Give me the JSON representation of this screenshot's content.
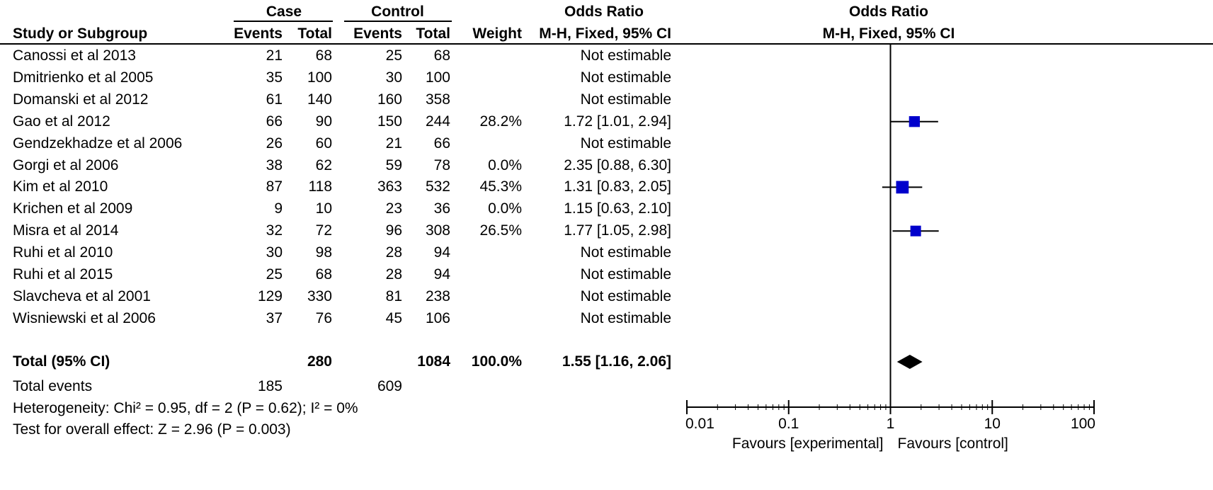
{
  "chart_data": {
    "type": "forest",
    "headers": {
      "case": "Case",
      "control": "Control",
      "or_group": "Odds Ratio",
      "plot_group": "Odds Ratio",
      "study": "Study or Subgroup",
      "case_events": "Events",
      "case_total": "Total",
      "control_events": "Events",
      "control_total": "Total",
      "weight": "Weight",
      "method": "M-H, Fixed, 95% CI",
      "plot_method": "M-H, Fixed, 95% CI"
    },
    "studies": [
      {
        "name": "Canossi et al 2013",
        "case_events": "21",
        "case_total": "68",
        "control_events": "25",
        "control_total": "68",
        "weight": "",
        "or_text": "Not estimable",
        "or": null,
        "lo": null,
        "hi": null,
        "w": 0
      },
      {
        "name": "Dmitrienko et al 2005",
        "case_events": "35",
        "case_total": "100",
        "control_events": "30",
        "control_total": "100",
        "weight": "",
        "or_text": "Not estimable",
        "or": null,
        "lo": null,
        "hi": null,
        "w": 0
      },
      {
        "name": "Domanski et al 2012",
        "case_events": "61",
        "case_total": "140",
        "control_events": "160",
        "control_total": "358",
        "weight": "",
        "or_text": "Not estimable",
        "or": null,
        "lo": null,
        "hi": null,
        "w": 0
      },
      {
        "name": "Gao et al 2012",
        "case_events": "66",
        "case_total": "90",
        "control_events": "150",
        "control_total": "244",
        "weight": "28.2%",
        "or_text": "1.72 [1.01, 2.94]",
        "or": 1.72,
        "lo": 1.01,
        "hi": 2.94,
        "w": 28.2
      },
      {
        "name": "Gendzekhadze et al 2006",
        "case_events": "26",
        "case_total": "60",
        "control_events": "21",
        "control_total": "66",
        "weight": "",
        "or_text": "Not estimable",
        "or": null,
        "lo": null,
        "hi": null,
        "w": 0
      },
      {
        "name": "Gorgi et al 2006",
        "case_events": "38",
        "case_total": "62",
        "control_events": "59",
        "control_total": "78",
        "weight": "0.0%",
        "or_text": "2.35 [0.88, 6.30]",
        "or": null,
        "lo": null,
        "hi": null,
        "w": 0
      },
      {
        "name": "Kim et al 2010",
        "case_events": "87",
        "case_total": "118",
        "control_events": "363",
        "control_total": "532",
        "weight": "45.3%",
        "or_text": "1.31 [0.83, 2.05]",
        "or": 1.31,
        "lo": 0.83,
        "hi": 2.05,
        "w": 45.3
      },
      {
        "name": "Krichen et al 2009",
        "case_events": "9",
        "case_total": "10",
        "control_events": "23",
        "control_total": "36",
        "weight": "0.0%",
        "or_text": "1.15 [0.63, 2.10]",
        "or": null,
        "lo": null,
        "hi": null,
        "w": 0
      },
      {
        "name": "Misra et al 2014",
        "case_events": "32",
        "case_total": "72",
        "control_events": "96",
        "control_total": "308",
        "weight": "26.5%",
        "or_text": "1.77 [1.05, 2.98]",
        "or": 1.77,
        "lo": 1.05,
        "hi": 2.98,
        "w": 26.5
      },
      {
        "name": "Ruhi et al 2010",
        "case_events": "30",
        "case_total": "98",
        "control_events": "28",
        "control_total": "94",
        "weight": "",
        "or_text": "Not estimable",
        "or": null,
        "lo": null,
        "hi": null,
        "w": 0
      },
      {
        "name": "Ruhi et al 2015",
        "case_events": "25",
        "case_total": "68",
        "control_events": "28",
        "control_total": "94",
        "weight": "",
        "or_text": "Not estimable",
        "or": null,
        "lo": null,
        "hi": null,
        "w": 0
      },
      {
        "name": "Slavcheva et al 2001",
        "case_events": "129",
        "case_total": "330",
        "control_events": "81",
        "control_total": "238",
        "weight": "",
        "or_text": "Not estimable",
        "or": null,
        "lo": null,
        "hi": null,
        "w": 0
      },
      {
        "name": "Wisniewski et al 2006",
        "case_events": "37",
        "case_total": "76",
        "control_events": "45",
        "control_total": "106",
        "weight": "",
        "or_text": "Not estimable",
        "or": null,
        "lo": null,
        "hi": null,
        "w": 0
      }
    ],
    "total": {
      "label": "Total (95% CI)",
      "case_total": "280",
      "control_total": "1084",
      "weight": "100.0%",
      "or_text": "1.55 [1.16, 2.06]",
      "or": 1.55,
      "lo": 1.16,
      "hi": 2.06
    },
    "total_events": {
      "label": "Total events",
      "case": "185",
      "control": "609"
    },
    "heterogeneity": "Heterogeneity: Chi² = 0.95, df = 2 (P = 0.62); I² = 0%",
    "overall_effect": "Test for overall effect: Z = 2.96 (P = 0.003)",
    "axis": {
      "scale": "log",
      "xlim": [
        0.01,
        100
      ],
      "ticks": [
        0.01,
        0.1,
        1,
        10,
        100
      ],
      "tick_labels": [
        "0.01",
        "0.1",
        "1",
        "10",
        "100"
      ],
      "favours_left": "Favours [experimental]",
      "favours_right": "Favours [control]"
    },
    "colors": {
      "square": "#0000cc",
      "diamond": "#000000"
    }
  }
}
